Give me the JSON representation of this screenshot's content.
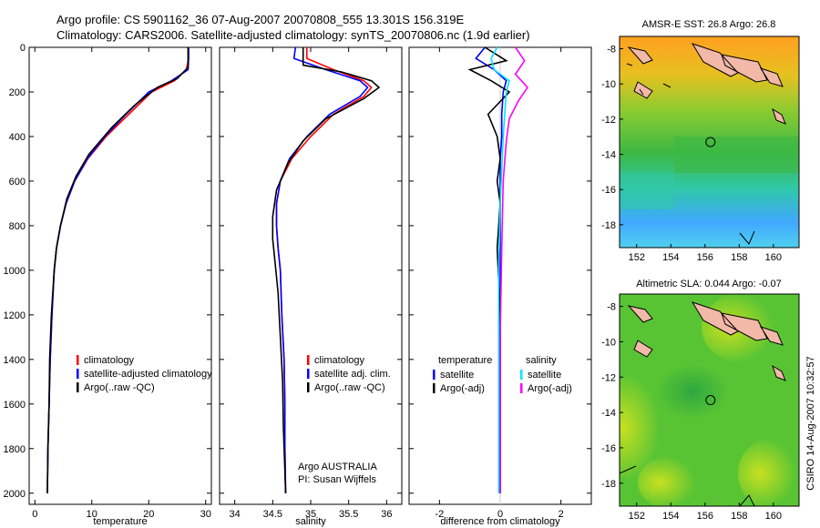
{
  "title_line1": "Argo profile: CS 5901162_36 07-Aug-2007 20070808_555 13.301S 156.319E",
  "title_line2": "Climatology: CARS2006. Satellite-adjusted climatology: synTS_20070806.nc (1.9d earlier)",
  "colors": {
    "climatology": "#ff0000",
    "satellite": "#0000ff",
    "argo": "#000000",
    "argo_adj_salinity": "#ff00ff",
    "satellite_salinity": "#00e5ff"
  },
  "chart_data": [
    {
      "type": "line",
      "xlabel": "temperature",
      "ylabel": "",
      "xlim": [
        -1,
        31
      ],
      "ylim": [
        2050,
        0
      ],
      "y_inverted": true,
      "x_ticks": [
        "0",
        "10",
        "20",
        "30"
      ],
      "y_ticks": [
        "0",
        "200",
        "400",
        "600",
        "800",
        "1000",
        "1200",
        "1400",
        "1600",
        "1800",
        "2000"
      ],
      "legend": {
        "position": "lower-center",
        "entries": [
          "climatology",
          "satellite-adjusted climatology",
          "Argo(..raw -QC)"
        ]
      },
      "series": [
        {
          "name": "climatology",
          "color": "climatology",
          "points": [
            [
              27.0,
              0
            ],
            [
              27.0,
              50
            ],
            [
              26.6,
              100
            ],
            [
              24.5,
              150
            ],
            [
              20.5,
              200
            ],
            [
              16.5,
              300
            ],
            [
              12.5,
              400
            ],
            [
              9.3,
              500
            ],
            [
              7.0,
              600
            ],
            [
              5.5,
              700
            ],
            [
              4.5,
              800
            ],
            [
              3.8,
              900
            ],
            [
              3.4,
              1000
            ],
            [
              3.0,
              1200
            ],
            [
              2.7,
              1400
            ],
            [
              2.5,
              1600
            ],
            [
              2.3,
              1800
            ],
            [
              2.2,
              2000
            ]
          ]
        },
        {
          "name": "satellite-adjusted climatology",
          "color": "satellite",
          "points": [
            [
              27.0,
              0
            ],
            [
              27.0,
              50
            ],
            [
              26.9,
              100
            ],
            [
              24.0,
              150
            ],
            [
              20.0,
              200
            ],
            [
              16.0,
              300
            ],
            [
              12.3,
              400
            ],
            [
              9.2,
              500
            ],
            [
              7.0,
              600
            ],
            [
              5.5,
              700
            ],
            [
              4.5,
              800
            ],
            [
              3.8,
              900
            ],
            [
              3.4,
              1000
            ],
            [
              3.0,
              1200
            ],
            [
              2.7,
              1400
            ],
            [
              2.5,
              1600
            ],
            [
              2.3,
              1800
            ],
            [
              2.2,
              2000
            ]
          ]
        },
        {
          "name": "Argo(..raw -QC)",
          "color": "argo",
          "points": [
            [
              26.9,
              0
            ],
            [
              26.9,
              90
            ],
            [
              25.0,
              140
            ],
            [
              21.5,
              180
            ],
            [
              17.5,
              260
            ],
            [
              13.5,
              360
            ],
            [
              9.5,
              480
            ],
            [
              7.2,
              580
            ],
            [
              5.6,
              680
            ],
            [
              4.5,
              800
            ],
            [
              3.8,
              900
            ],
            [
              3.4,
              1000
            ],
            [
              2.9,
              1200
            ],
            [
              2.6,
              1400
            ],
            [
              2.5,
              1600
            ],
            [
              2.3,
              1800
            ],
            [
              2.2,
              2000
            ]
          ]
        }
      ]
    },
    {
      "type": "line",
      "xlabel": "salinity",
      "xlim": [
        33.8,
        36.2
      ],
      "ylim": [
        2050,
        0
      ],
      "y_inverted": true,
      "x_ticks": [
        "34",
        "34.5",
        "35",
        "35.5",
        "36"
      ],
      "legend": {
        "position": "lower-center",
        "entries": [
          "climatology",
          "satellite adj. clim.",
          "Argo(..raw -QC)"
        ]
      },
      "annotation": [
        "Argo AUSTRALIA",
        "PI: Susan Wijffels"
      ],
      "series": [
        {
          "name": "climatology",
          "color": "climatology",
          "points": [
            [
              34.95,
              0
            ],
            [
              34.95,
              50
            ],
            [
              35.3,
              100
            ],
            [
              35.7,
              150
            ],
            [
              35.8,
              180
            ],
            [
              35.7,
              220
            ],
            [
              35.3,
              300
            ],
            [
              35.0,
              400
            ],
            [
              34.75,
              500
            ],
            [
              34.6,
              600
            ],
            [
              34.55,
              700
            ],
            [
              34.55,
              800
            ],
            [
              34.57,
              900
            ],
            [
              34.6,
              1000
            ],
            [
              34.62,
              1200
            ],
            [
              34.65,
              1400
            ],
            [
              34.66,
              1600
            ],
            [
              34.66,
              1800
            ],
            [
              34.67,
              2000
            ]
          ]
        },
        {
          "name": "satellite adj. clim.",
          "color": "satellite",
          "points": [
            [
              34.8,
              0
            ],
            [
              34.78,
              50
            ],
            [
              35.2,
              100
            ],
            [
              35.65,
              150
            ],
            [
              35.75,
              180
            ],
            [
              35.65,
              220
            ],
            [
              35.25,
              300
            ],
            [
              34.95,
              400
            ],
            [
              34.72,
              500
            ],
            [
              34.6,
              600
            ],
            [
              34.55,
              700
            ],
            [
              34.55,
              800
            ],
            [
              34.57,
              900
            ],
            [
              34.6,
              1000
            ],
            [
              34.62,
              1200
            ],
            [
              34.65,
              1400
            ],
            [
              34.66,
              1600
            ],
            [
              34.66,
              1800
            ],
            [
              34.67,
              2000
            ]
          ]
        },
        {
          "name": "Argo(..raw -QC)",
          "color": "argo",
          "points": [
            [
              34.9,
              0
            ],
            [
              34.9,
              80
            ],
            [
              35.4,
              110
            ],
            [
              35.8,
              150
            ],
            [
              35.9,
              180
            ],
            [
              35.7,
              230
            ],
            [
              35.2,
              320
            ],
            [
              34.9,
              420
            ],
            [
              34.7,
              520
            ],
            [
              34.55,
              640
            ],
            [
              34.5,
              760
            ],
            [
              34.5,
              860
            ],
            [
              34.53,
              960
            ],
            [
              34.57,
              1100
            ],
            [
              34.6,
              1300
            ],
            [
              34.63,
              1500
            ],
            [
              34.64,
              1700
            ],
            [
              34.66,
              1900
            ],
            [
              34.67,
              2000
            ]
          ]
        }
      ]
    },
    {
      "type": "line",
      "xlabel": "difference from climatology",
      "xlim": [
        -3,
        3
      ],
      "ylim": [
        2050,
        0
      ],
      "y_inverted": true,
      "x_ticks": [
        "-2",
        "0",
        "2"
      ],
      "legend": {
        "position": "lower-center",
        "groups": [
          {
            "heading": "temperature",
            "entries": [
              "satellite",
              "Argo(-adj)"
            ]
          },
          {
            "heading": "salinity",
            "entries": [
              "satellite",
              "Argo(-adj)"
            ]
          }
        ]
      },
      "series": [
        {
          "name": "temperature satellite",
          "color": "satellite",
          "points": [
            [
              -0.5,
              0
            ],
            [
              -0.8,
              50
            ],
            [
              -0.2,
              100
            ],
            [
              0.2,
              150
            ],
            [
              0.1,
              200
            ],
            [
              0.05,
              300
            ],
            [
              0.05,
              400
            ],
            [
              0.0,
              500
            ],
            [
              0.0,
              700
            ],
            [
              0.0,
              1000
            ],
            [
              0.0,
              1500
            ],
            [
              0.0,
              2000
            ]
          ]
        },
        {
          "name": "temperature Argo(-adj)",
          "color": "argo",
          "points": [
            [
              -0.5,
              0
            ],
            [
              0.2,
              60
            ],
            [
              -1.0,
              100
            ],
            [
              -0.3,
              150
            ],
            [
              0.3,
              200
            ],
            [
              -0.4,
              300
            ],
            [
              -0.1,
              400
            ],
            [
              0.0,
              500
            ],
            [
              -0.1,
              600
            ],
            [
              0.0,
              700
            ],
            [
              -0.1,
              900
            ],
            [
              0.0,
              1200
            ],
            [
              0.0,
              1600
            ],
            [
              0.0,
              2000
            ]
          ]
        },
        {
          "name": "salinity satellite",
          "color": "satellite_salinity",
          "points": [
            [
              -0.1,
              0
            ],
            [
              -0.3,
              50
            ],
            [
              -0.2,
              100
            ],
            [
              0.3,
              150
            ],
            [
              0.2,
              200
            ],
            [
              0.1,
              400
            ],
            [
              0.0,
              700
            ],
            [
              -0.05,
              1000
            ],
            [
              -0.05,
              1500
            ],
            [
              -0.05,
              2000
            ]
          ]
        },
        {
          "name": "salinity Argo(-adj)",
          "color": "argo_adj_salinity",
          "points": [
            [
              0.5,
              0
            ],
            [
              0.8,
              60
            ],
            [
              0.5,
              120
            ],
            [
              0.9,
              180
            ],
            [
              0.6,
              240
            ],
            [
              0.3,
              320
            ],
            [
              0.2,
              420
            ],
            [
              0.1,
              600
            ],
            [
              0.05,
              900
            ],
            [
              0.0,
              1300
            ],
            [
              0.0,
              2000
            ]
          ]
        }
      ]
    }
  ],
  "map_top": {
    "title": "AMSR-E SST: 26.8 Argo: 26.8",
    "x_ticks": [
      "152",
      "154",
      "156",
      "158",
      "160"
    ],
    "y_ticks": [
      "-8",
      "-10",
      "-12",
      "-14",
      "-16",
      "-18"
    ],
    "float_position": {
      "lon": 156.319,
      "lat": -13.301
    }
  },
  "map_bottom": {
    "title": "Altimetric SLA: 0.044 Argo: -0.07",
    "x_ticks": [
      "152",
      "154",
      "156",
      "158",
      "160"
    ],
    "y_ticks": [
      "-8",
      "-10",
      "-12",
      "-14",
      "-16",
      "-18"
    ],
    "float_position": {
      "lon": 156.319,
      "lat": -13.301
    }
  },
  "side_label": "CSIRO 14-Aug-2007 10:32:57"
}
